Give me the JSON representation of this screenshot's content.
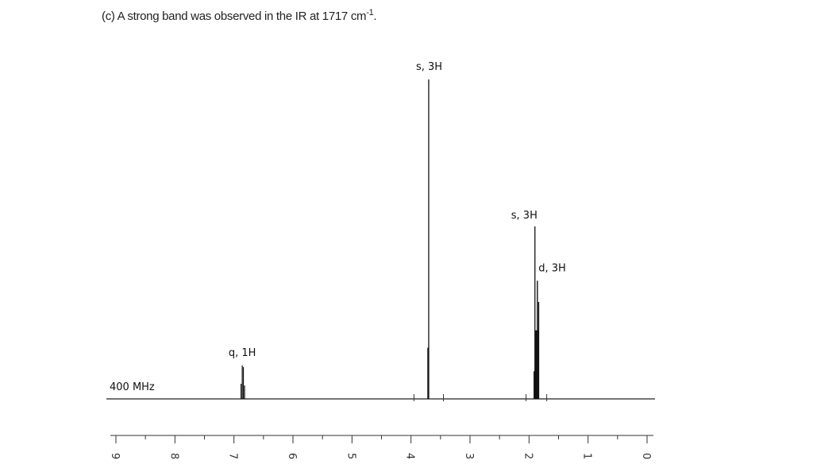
{
  "caption": {
    "prefix": "(c) A strong band was observed in the IR at 1717 cm",
    "sup": "-1",
    "suffix": "."
  },
  "chart_data": {
    "type": "line",
    "title": "",
    "frequency_label": "400 MHz",
    "xlim": [
      9,
      0
    ],
    "x_axis_reversed": true,
    "ticks": [
      "9",
      "8",
      "7",
      "6",
      "5",
      "4",
      "3",
      "2",
      "1",
      "0"
    ],
    "peaks": [
      {
        "label": "q, 1H",
        "shift": 6.85,
        "relative_height": 0.105,
        "multiplicity": "q"
      },
      {
        "label": "s, 3H",
        "shift": 3.7,
        "relative_height": 1.0,
        "multiplicity": "s"
      },
      {
        "label": "s, 3H",
        "shift": 1.9,
        "relative_height": 0.54,
        "multiplicity": "s"
      },
      {
        "label": "d, 3H",
        "shift": 1.88,
        "relative_height": 0.37,
        "multiplicity": "d"
      }
    ]
  }
}
